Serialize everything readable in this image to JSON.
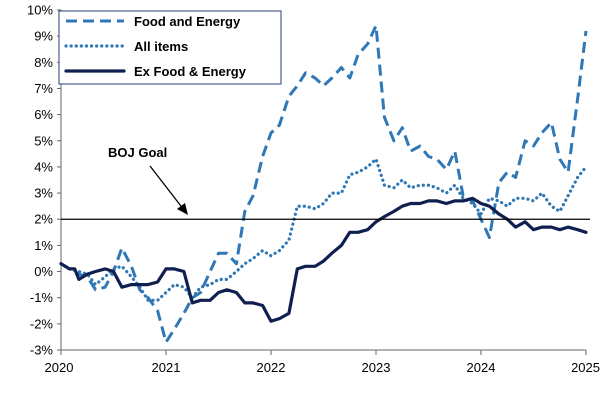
{
  "chart_data": {
    "type": "line",
    "xlim": [
      2020,
      2025
    ],
    "ylim": [
      -3,
      10
    ],
    "x_ticks": [
      "2020",
      "2021",
      "2022",
      "2023",
      "2024",
      "2025"
    ],
    "y_ticks": [
      "-3%",
      "-2%",
      "-1%",
      "0%",
      "1%",
      "2%",
      "3%",
      "4%",
      "5%",
      "6%",
      "7%",
      "8%",
      "9%",
      "10%"
    ],
    "grid": false,
    "legend_position": "top-left",
    "reference_line": {
      "label": "BOJ Goal",
      "value": 2
    },
    "series": [
      {
        "name": "Food and Energy",
        "style": "dashed",
        "color": "#2f77b5",
        "points": [
          [
            2020.0,
            0.3
          ],
          [
            2020.08,
            0.1
          ],
          [
            2020.17,
            -0.1
          ],
          [
            2020.25,
            -0.2
          ],
          [
            2020.33,
            -0.7
          ],
          [
            2020.42,
            -0.6
          ],
          [
            2020.5,
            0.0
          ],
          [
            2020.58,
            0.9
          ],
          [
            2020.67,
            0.2
          ],
          [
            2020.75,
            -0.7
          ],
          [
            2020.83,
            -1.0
          ],
          [
            2020.92,
            -1.5
          ],
          [
            2021.0,
            -2.7
          ],
          [
            2021.08,
            -2.2
          ],
          [
            2021.17,
            -1.6
          ],
          [
            2021.25,
            -1.0
          ],
          [
            2021.33,
            -0.8
          ],
          [
            2021.42,
            0.0
          ],
          [
            2021.5,
            0.7
          ],
          [
            2021.58,
            0.7
          ],
          [
            2021.67,
            0.3
          ],
          [
            2021.75,
            2.3
          ],
          [
            2021.83,
            2.9
          ],
          [
            2021.92,
            4.4
          ],
          [
            2022.0,
            5.3
          ],
          [
            2022.08,
            5.6
          ],
          [
            2022.17,
            6.7
          ],
          [
            2022.25,
            7.1
          ],
          [
            2022.33,
            7.6
          ],
          [
            2022.42,
            7.4
          ],
          [
            2022.5,
            7.1
          ],
          [
            2022.58,
            7.4
          ],
          [
            2022.67,
            7.8
          ],
          [
            2022.75,
            7.4
          ],
          [
            2022.83,
            8.3
          ],
          [
            2022.92,
            8.7
          ],
          [
            2023.0,
            9.4
          ],
          [
            2023.08,
            5.9
          ],
          [
            2023.17,
            5.0
          ],
          [
            2023.25,
            5.5
          ],
          [
            2023.33,
            4.6
          ],
          [
            2023.42,
            4.8
          ],
          [
            2023.5,
            4.4
          ],
          [
            2023.58,
            4.3
          ],
          [
            2023.67,
            3.9
          ],
          [
            2023.75,
            4.6
          ],
          [
            2023.83,
            2.9
          ],
          [
            2023.92,
            2.7
          ],
          [
            2024.0,
            2.0
          ],
          [
            2024.08,
            1.3
          ],
          [
            2024.17,
            3.4
          ],
          [
            2024.25,
            3.8
          ],
          [
            2024.33,
            3.6
          ],
          [
            2024.42,
            5.0
          ],
          [
            2024.5,
            4.8
          ],
          [
            2024.58,
            5.3
          ],
          [
            2024.67,
            5.7
          ],
          [
            2024.75,
            4.3
          ],
          [
            2024.83,
            3.8
          ],
          [
            2024.92,
            6.6
          ],
          [
            2025.0,
            9.2
          ]
        ]
      },
      {
        "name": "All items",
        "style": "dotted",
        "color": "#2f77b5",
        "points": [
          [
            2020.0,
            0.3
          ],
          [
            2020.08,
            0.1
          ],
          [
            2020.17,
            0.0
          ],
          [
            2020.25,
            -0.1
          ],
          [
            2020.33,
            -0.5
          ],
          [
            2020.42,
            -0.2
          ],
          [
            2020.5,
            0.1
          ],
          [
            2020.58,
            0.2
          ],
          [
            2020.67,
            -0.2
          ],
          [
            2020.75,
            -0.6
          ],
          [
            2020.83,
            -1.1
          ],
          [
            2020.92,
            -1.1
          ],
          [
            2021.0,
            -0.8
          ],
          [
            2021.08,
            -0.5
          ],
          [
            2021.17,
            -0.6
          ],
          [
            2021.25,
            -1.0
          ],
          [
            2021.33,
            -0.6
          ],
          [
            2021.42,
            -0.5
          ],
          [
            2021.5,
            -0.3
          ],
          [
            2021.58,
            -0.3
          ],
          [
            2021.67,
            0.0
          ],
          [
            2021.75,
            0.3
          ],
          [
            2021.83,
            0.5
          ],
          [
            2021.92,
            0.8
          ],
          [
            2022.0,
            0.6
          ],
          [
            2022.08,
            0.8
          ],
          [
            2022.17,
            1.2
          ],
          [
            2022.25,
            2.5
          ],
          [
            2022.33,
            2.5
          ],
          [
            2022.42,
            2.4
          ],
          [
            2022.5,
            2.6
          ],
          [
            2022.58,
            3.0
          ],
          [
            2022.67,
            3.0
          ],
          [
            2022.75,
            3.7
          ],
          [
            2022.83,
            3.8
          ],
          [
            2022.92,
            4.0
          ],
          [
            2023.0,
            4.3
          ],
          [
            2023.08,
            3.3
          ],
          [
            2023.17,
            3.2
          ],
          [
            2023.25,
            3.5
          ],
          [
            2023.33,
            3.2
          ],
          [
            2023.42,
            3.3
          ],
          [
            2023.5,
            3.3
          ],
          [
            2023.58,
            3.2
          ],
          [
            2023.67,
            3.0
          ],
          [
            2023.75,
            3.3
          ],
          [
            2023.83,
            2.8
          ],
          [
            2023.92,
            2.6
          ],
          [
            2024.0,
            2.2
          ],
          [
            2024.08,
            2.8
          ],
          [
            2024.17,
            2.7
          ],
          [
            2024.25,
            2.5
          ],
          [
            2024.33,
            2.8
          ],
          [
            2024.42,
            2.8
          ],
          [
            2024.5,
            2.7
          ],
          [
            2024.58,
            3.0
          ],
          [
            2024.67,
            2.5
          ],
          [
            2024.75,
            2.3
          ],
          [
            2024.83,
            2.9
          ],
          [
            2024.92,
            3.6
          ],
          [
            2025.0,
            4.0
          ]
        ]
      },
      {
        "name": "Ex Food & Energy",
        "style": "solid",
        "color": "#0f1f4f",
        "points": [
          [
            2020.0,
            0.3
          ],
          [
            2020.08,
            0.1
          ],
          [
            2020.13,
            0.1
          ],
          [
            2020.17,
            -0.3
          ],
          [
            2020.25,
            -0.1
          ],
          [
            2020.33,
            0.0
          ],
          [
            2020.42,
            0.1
          ],
          [
            2020.5,
            0.0
          ],
          [
            2020.58,
            -0.6
          ],
          [
            2020.67,
            -0.5
          ],
          [
            2020.75,
            -0.5
          ],
          [
            2020.83,
            -0.5
          ],
          [
            2020.92,
            -0.4
          ],
          [
            2021.0,
            0.1
          ],
          [
            2021.08,
            0.1
          ],
          [
            2021.17,
            0.0
          ],
          [
            2021.25,
            -1.2
          ],
          [
            2021.33,
            -1.1
          ],
          [
            2021.42,
            -1.1
          ],
          [
            2021.5,
            -0.8
          ],
          [
            2021.58,
            -0.7
          ],
          [
            2021.67,
            -0.8
          ],
          [
            2021.75,
            -1.2
          ],
          [
            2021.83,
            -1.2
          ],
          [
            2021.92,
            -1.3
          ],
          [
            2022.0,
            -1.9
          ],
          [
            2022.08,
            -1.8
          ],
          [
            2022.17,
            -1.6
          ],
          [
            2022.25,
            0.1
          ],
          [
            2022.33,
            0.2
          ],
          [
            2022.42,
            0.2
          ],
          [
            2022.5,
            0.4
          ],
          [
            2022.58,
            0.7
          ],
          [
            2022.67,
            1.0
          ],
          [
            2022.75,
            1.5
          ],
          [
            2022.83,
            1.5
          ],
          [
            2022.92,
            1.6
          ],
          [
            2023.0,
            1.9
          ],
          [
            2023.08,
            2.1
          ],
          [
            2023.17,
            2.3
          ],
          [
            2023.25,
            2.5
          ],
          [
            2023.33,
            2.6
          ],
          [
            2023.42,
            2.6
          ],
          [
            2023.5,
            2.7
          ],
          [
            2023.58,
            2.7
          ],
          [
            2023.67,
            2.6
          ],
          [
            2023.75,
            2.7
          ],
          [
            2023.83,
            2.7
          ],
          [
            2023.92,
            2.8
          ],
          [
            2024.0,
            2.6
          ],
          [
            2024.08,
            2.5
          ],
          [
            2024.17,
            2.2
          ],
          [
            2024.25,
            2.0
          ],
          [
            2024.33,
            1.7
          ],
          [
            2024.42,
            1.9
          ],
          [
            2024.5,
            1.6
          ],
          [
            2024.58,
            1.7
          ],
          [
            2024.67,
            1.7
          ],
          [
            2024.75,
            1.6
          ],
          [
            2024.83,
            1.7
          ],
          [
            2024.92,
            1.6
          ],
          [
            2025.0,
            1.5
          ]
        ]
      }
    ]
  }
}
